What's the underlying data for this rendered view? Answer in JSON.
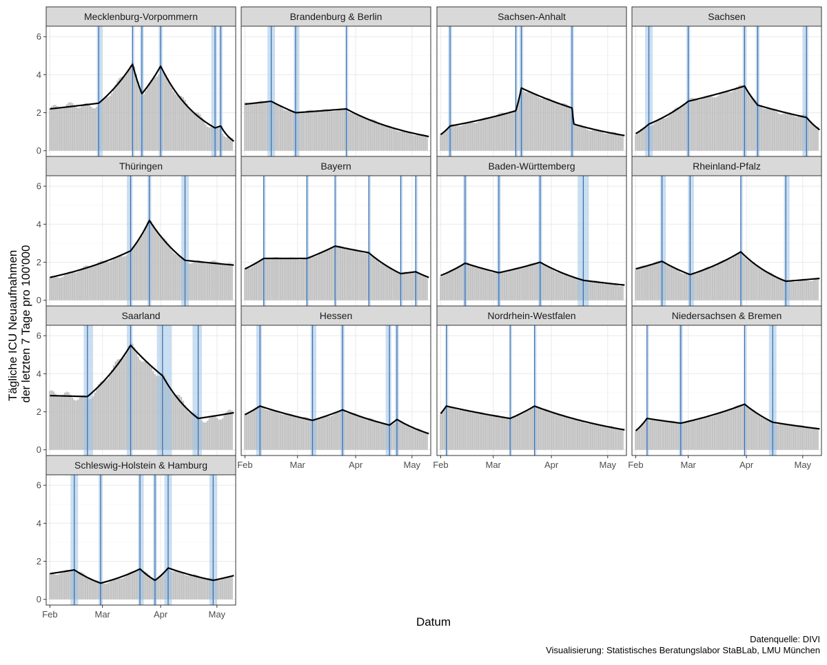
{
  "chart_data": {
    "type": "bar",
    "title": "",
    "xlabel": "Datum",
    "ylabel_lines": [
      "Tägliche ICU Neuaufnahmen",
      "der letzten 7 Tage pro 100'000"
    ],
    "ylim": [
      -0.3,
      6.55
    ],
    "y_ticks": [
      0,
      2,
      4,
      6
    ],
    "x_range_days": [
      -2,
      99
    ],
    "x_ticks": [
      {
        "label": "Feb",
        "day": 0
      },
      {
        "label": "Mar",
        "day": 28
      },
      {
        "label": "Apr",
        "day": 59
      },
      {
        "label": "May",
        "day": 89
      }
    ],
    "days": 98,
    "caption_lines": [
      "Datenquelle: DIVI",
      "Visualisierung: Statistisches Beratungslabor StaBLab, LMU München"
    ],
    "colors": {
      "bar": "#bdbdbd",
      "trend": "#000000",
      "breakpoint_line": "#3a6fb0",
      "breakpoint_band": "#9ec3e6",
      "strip_bg": "#d9d9d9",
      "grid": "#ebebeb",
      "panel_border": "#333333"
    },
    "panels": [
      {
        "name": "Mecklenburg-Vorpommern",
        "trend": [
          [
            0,
            2.2
          ],
          [
            26,
            2.5
          ],
          [
            44,
            4.55
          ],
          [
            49,
            3.0
          ],
          [
            59,
            4.45
          ],
          [
            88,
            1.2
          ],
          [
            91,
            1.3
          ],
          [
            98,
            0.5
          ]
        ],
        "breakpoints": [
          [
            26,
            25,
            28
          ],
          [
            44,
            44,
            45
          ],
          [
            49,
            48,
            50
          ],
          [
            59,
            58,
            60
          ],
          [
            88,
            86,
            89
          ],
          [
            91,
            90,
            92
          ]
        ],
        "bar_noise": 0.25
      },
      {
        "name": "Brandenburg & Berlin",
        "trend": [
          [
            0,
            2.45
          ],
          [
            14,
            2.6
          ],
          [
            27,
            2.0
          ],
          [
            54,
            2.2
          ],
          [
            98,
            0.75
          ]
        ],
        "breakpoints": [
          [
            14,
            12,
            16
          ],
          [
            27,
            26,
            29
          ],
          [
            54,
            54,
            55
          ]
        ],
        "bar_noise": 0.1
      },
      {
        "name": "Sachsen-Anhalt",
        "trend": [
          [
            0,
            0.85
          ],
          [
            5,
            1.3
          ],
          [
            40,
            2.1
          ],
          [
            43,
            3.3
          ],
          [
            70,
            2.25
          ],
          [
            71,
            1.4
          ],
          [
            98,
            0.8
          ]
        ],
        "breakpoints": [
          [
            5,
            4,
            6
          ],
          [
            40,
            40,
            41
          ],
          [
            43,
            42,
            44
          ],
          [
            70,
            69,
            71
          ]
        ],
        "bar_noise": 0.12
      },
      {
        "name": "Sachsen",
        "trend": [
          [
            0,
            0.9
          ],
          [
            7,
            1.4
          ],
          [
            28,
            2.6
          ],
          [
            58,
            3.4
          ],
          [
            65,
            2.4
          ],
          [
            91,
            1.75
          ],
          [
            98,
            1.1
          ]
        ],
        "breakpoints": [
          [
            7,
            5,
            9
          ],
          [
            28,
            27,
            29
          ],
          [
            58,
            57,
            59
          ],
          [
            65,
            64,
            66
          ],
          [
            91,
            89,
            92
          ]
        ],
        "bar_noise": 0.15
      },
      {
        "name": "Thüringen",
        "trend": [
          [
            0,
            1.2
          ],
          [
            43,
            2.6
          ],
          [
            53,
            4.2
          ],
          [
            72,
            2.1
          ],
          [
            98,
            1.85
          ]
        ],
        "breakpoints": [
          [
            43,
            41,
            44
          ],
          [
            53,
            52,
            54
          ],
          [
            72,
            70,
            74
          ]
        ],
        "bar_noise": 0.15
      },
      {
        "name": "Bayern",
        "trend": [
          [
            0,
            1.65
          ],
          [
            10,
            2.2
          ],
          [
            33,
            2.2
          ],
          [
            48,
            2.85
          ],
          [
            66,
            2.5
          ],
          [
            83,
            1.4
          ],
          [
            91,
            1.5
          ],
          [
            98,
            1.2
          ]
        ],
        "breakpoints": [
          [
            10,
            10,
            11
          ],
          [
            33,
            33,
            34
          ],
          [
            48,
            48,
            49
          ],
          [
            66,
            66,
            67
          ],
          [
            83,
            83,
            84
          ],
          [
            91,
            91,
            92
          ]
        ],
        "bar_noise": 0.08
      },
      {
        "name": "Baden-Württemberg",
        "trend": [
          [
            0,
            1.3
          ],
          [
            13,
            1.95
          ],
          [
            31,
            1.45
          ],
          [
            53,
            2.0
          ],
          [
            76,
            1.05
          ],
          [
            98,
            0.8
          ]
        ],
        "breakpoints": [
          [
            13,
            12,
            14
          ],
          [
            31,
            30,
            32
          ],
          [
            53,
            52,
            54
          ],
          [
            76,
            73,
            79
          ]
        ],
        "bar_noise": 0.08
      },
      {
        "name": "Rheinland-Pfalz",
        "trend": [
          [
            0,
            1.65
          ],
          [
            14,
            2.05
          ],
          [
            29,
            1.35
          ],
          [
            56,
            2.55
          ],
          [
            80,
            1.0
          ],
          [
            98,
            1.15
          ]
        ],
        "breakpoints": [
          [
            14,
            13,
            16
          ],
          [
            29,
            28,
            31
          ],
          [
            56,
            56,
            57
          ],
          [
            80,
            79,
            82
          ]
        ],
        "bar_noise": 0.1
      },
      {
        "name": "Saarland",
        "trend": [
          [
            0,
            2.85
          ],
          [
            20,
            2.8
          ],
          [
            43,
            5.5
          ],
          [
            60,
            3.9
          ],
          [
            79,
            1.65
          ],
          [
            98,
            1.95
          ]
        ],
        "breakpoints": [
          [
            20,
            18,
            23
          ],
          [
            43,
            41,
            44
          ],
          [
            60,
            57,
            65
          ],
          [
            79,
            76,
            81
          ]
        ],
        "bar_noise": 0.3
      },
      {
        "name": "Hessen",
        "trend": [
          [
            0,
            1.85
          ],
          [
            8,
            2.3
          ],
          [
            36,
            1.55
          ],
          [
            52,
            2.1
          ],
          [
            77,
            1.3
          ],
          [
            81,
            1.6
          ],
          [
            98,
            0.85
          ]
        ],
        "breakpoints": [
          [
            8,
            6,
            9
          ],
          [
            36,
            35,
            38
          ],
          [
            52,
            51,
            53
          ],
          [
            77,
            75,
            78
          ],
          [
            81,
            80,
            82
          ]
        ],
        "bar_noise": 0.1
      },
      {
        "name": "Nordrhein-Westfalen",
        "trend": [
          [
            0,
            1.9
          ],
          [
            3,
            2.3
          ],
          [
            37,
            1.65
          ],
          [
            50,
            2.3
          ],
          [
            98,
            1.05
          ]
        ],
        "breakpoints": [
          [
            3,
            3,
            4
          ],
          [
            37,
            37,
            38
          ],
          [
            50,
            50,
            51
          ]
        ],
        "bar_noise": 0.07
      },
      {
        "name": "Niedersachsen & Bremen",
        "trend": [
          [
            0,
            1.0
          ],
          [
            6,
            1.65
          ],
          [
            24,
            1.4
          ],
          [
            58,
            2.4
          ],
          [
            73,
            1.45
          ],
          [
            98,
            1.1
          ]
        ],
        "breakpoints": [
          [
            6,
            6,
            7
          ],
          [
            24,
            23,
            25
          ],
          [
            58,
            58,
            59
          ],
          [
            73,
            71,
            75
          ]
        ],
        "bar_noise": 0.08
      },
      {
        "name": "Schleswig-Holstein & Hamburg",
        "trend": [
          [
            0,
            1.35
          ],
          [
            13,
            1.55
          ],
          [
            27,
            0.85
          ],
          [
            48,
            1.6
          ],
          [
            56,
            1.0
          ],
          [
            63,
            1.65
          ],
          [
            87,
            1.0
          ],
          [
            98,
            1.25
          ]
        ],
        "breakpoints": [
          [
            13,
            11,
            15
          ],
          [
            27,
            26,
            28
          ],
          [
            48,
            47,
            50
          ],
          [
            56,
            55,
            57
          ],
          [
            63,
            61,
            65
          ],
          [
            87,
            85,
            89
          ]
        ],
        "bar_noise": 0.12
      }
    ]
  }
}
